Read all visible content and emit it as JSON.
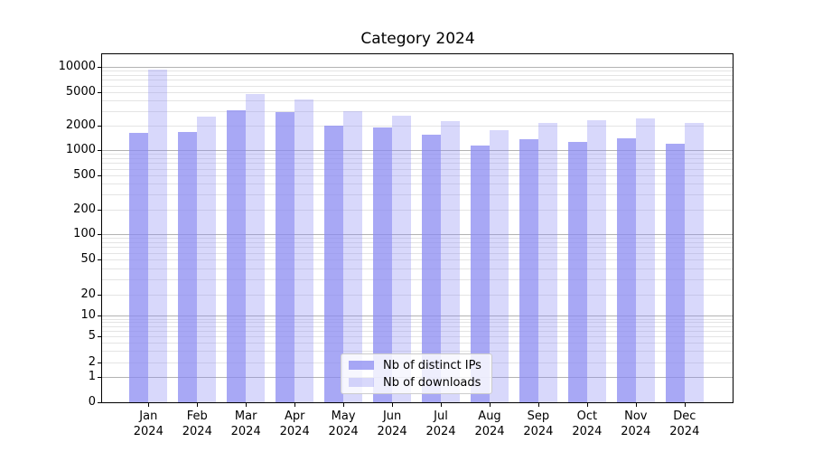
{
  "chart_data": {
    "type": "bar",
    "title": "Category 2024",
    "x": {
      "months": [
        "Jan",
        "Feb",
        "Mar",
        "Apr",
        "May",
        "Jun",
        "Jul",
        "Aug",
        "Sep",
        "Oct",
        "Nov",
        "Dec"
      ],
      "year": "2024"
    },
    "categories": [
      "Jan 2024",
      "Feb 2024",
      "Mar 2024",
      "Apr 2024",
      "May 2024",
      "Jun 2024",
      "Jul 2024",
      "Aug 2024",
      "Sep 2024",
      "Oct 2024",
      "Nov 2024",
      "Dec 2024"
    ],
    "series": [
      {
        "name": "Nb of distinct IPs",
        "color": "rgba(137,137,242,0.74)",
        "values": [
          1630,
          1670,
          3030,
          2880,
          2000,
          1900,
          1560,
          1140,
          1370,
          1250,
          1400,
          1200
        ]
      },
      {
        "name": "Nb of downloads",
        "color": "rgba(137,137,242,0.33)",
        "values": [
          9200,
          2560,
          4760,
          4150,
          2980,
          2600,
          2290,
          1750,
          2180,
          2300,
          2450,
          2180
        ]
      }
    ],
    "yscale": "symlog",
    "yticks": [
      0,
      1,
      2,
      5,
      10,
      20,
      50,
      100,
      200,
      500,
      1000,
      2000,
      5000,
      10000
    ],
    "ylim": [
      0,
      14000
    ],
    "xlabel": "",
    "ylabel": "",
    "grid": "horizontal, major and minor",
    "legend_position": "lower center",
    "colors": {
      "grid_major": "#b3b3b3",
      "grid_minor": "#e4e4e4",
      "axis": "#000000",
      "legend_border": "#cccccc"
    }
  }
}
